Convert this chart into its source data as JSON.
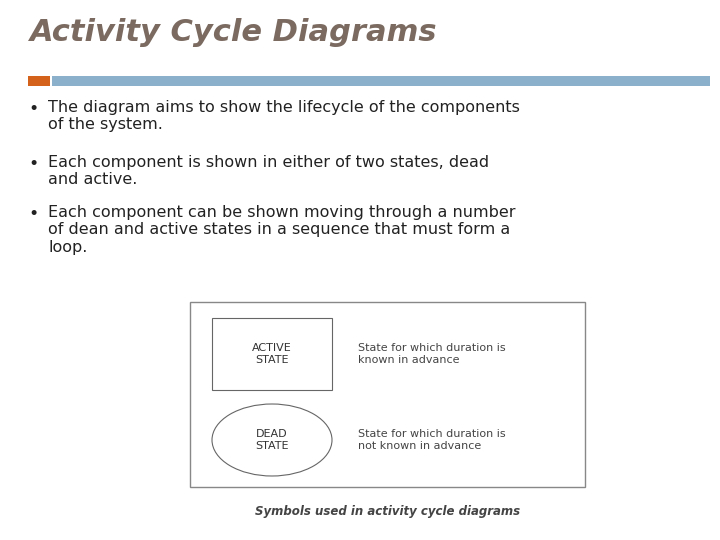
{
  "title": "Activity Cycle Diagrams",
  "title_color": "#7a6a60",
  "title_fontsize": 22,
  "title_style": "italic",
  "title_weight": "bold",
  "accent_bar_color_orange": "#d4621a",
  "accent_bar_color_blue": "#8ab0cc",
  "bullet_points": [
    "The diagram aims to show the lifecycle of the components\nof the system.",
    "Each component is shown in either of two states, dead\nand active.",
    "Each component can be shown moving through a number\nof dean and active states in a sequence that must form a\nloop."
  ],
  "bullet_color": "#222222",
  "bullet_fontsize": 11.5,
  "bg_color": "#ffffff",
  "active_label": "ACTIVE\nSTATE",
  "dead_label": "DEAD\nSTATE",
  "active_desc": "State for which duration is\nknown in advance",
  "dead_desc": "State for which duration is\nnot known in advance",
  "caption": "Symbols used in activity cycle diagrams",
  "shape_label_fontsize": 8,
  "desc_fontsize": 8,
  "caption_fontsize": 8.5
}
